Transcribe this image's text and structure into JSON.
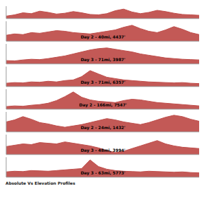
{
  "chart_data": [
    {
      "type": "area",
      "color": "#c0504d",
      "ylim": [
        0,
        3000
      ],
      "tick_labels": false,
      "values": [
        600,
        900,
        1400,
        1200,
        1800,
        1500,
        1100,
        1300,
        1700,
        1400,
        1000,
        900,
        1200,
        1900,
        2300,
        1600,
        1200,
        1500,
        2000,
        1700,
        1300,
        1000,
        900,
        800
      ]
    },
    {
      "type": "area",
      "title": "Day 2 - 40mi, 4437'",
      "color": "#c0504d",
      "ylim": [
        0,
        3000
      ],
      "tick_labels": false,
      "values": [
        900,
        1100,
        1000,
        1300,
        1200,
        1400,
        1600,
        1500,
        1300,
        1200,
        1100,
        1300,
        1500,
        1700,
        2100,
        2400,
        1900,
        1500,
        1300,
        1700,
        2200,
        1800,
        1300,
        1000
      ]
    },
    {
      "type": "area",
      "title": "Day 3 - 71mi, 3987'",
      "color": "#c0504d",
      "ylim": [
        0,
        3000
      ],
      "tick_labels": false,
      "values": [
        500,
        450,
        600,
        700,
        650,
        800,
        1000,
        1200,
        1500,
        1800,
        2100,
        2300,
        2400,
        2200,
        2000,
        1800,
        1500,
        1300,
        1100,
        900,
        800,
        700,
        650,
        600
      ]
    },
    {
      "type": "area",
      "title": "Day 3 - 71mi, 6357'",
      "color": "#c0504d",
      "ylim": [
        0,
        3000
      ],
      "tick_labels": false,
      "values": [
        500,
        600,
        550,
        700,
        650,
        800,
        700,
        900,
        1000,
        1500,
        2400,
        1900,
        1400,
        1200,
        1000,
        900,
        800,
        700,
        650,
        600,
        550,
        600,
        500,
        450
      ]
    },
    {
      "type": "area",
      "title": "Day 2 - 166mi, 7547'",
      "color": "#c0504d",
      "ylim": [
        0,
        3000
      ],
      "tick_labels": false,
      "values": [
        400,
        500,
        450,
        600,
        700,
        900,
        1300,
        1900,
        2600,
        1800,
        1400,
        1200,
        1100,
        1000,
        1300,
        1500,
        1400,
        1200,
        1000,
        900,
        800,
        700,
        600,
        500
      ]
    },
    {
      "type": "area",
      "title": "Day 2 - 24mi, 1432'",
      "color": "#c0504d",
      "ylim": [
        0,
        3000
      ],
      "tick_labels": false,
      "values": [
        1500,
        1800,
        2300,
        1900,
        1400,
        1200,
        900,
        700,
        900,
        1100,
        1400,
        1700,
        2000,
        1800,
        1500,
        1300,
        1100,
        1400,
        1800,
        2200,
        2500,
        2300,
        1900,
        1600
      ]
    },
    {
      "type": "area",
      "title": "Day 3 - 48mi, 3994'",
      "color": "#c0504d",
      "ylim": [
        0,
        3000
      ],
      "tick_labels": false,
      "values": [
        1200,
        1400,
        1600,
        1500,
        1800,
        1700,
        1600,
        1900,
        1700,
        1500,
        1300,
        1000,
        600,
        300,
        500,
        900,
        1300,
        1700,
        2100,
        1600,
        1300,
        1100,
        1000,
        900
      ]
    },
    {
      "type": "area",
      "title": "Day 3 - 63mi, 5773'",
      "color": "#c0504d",
      "ylim": [
        0,
        3000
      ],
      "tick_labels": false,
      "values": [
        800,
        900,
        850,
        1000,
        950,
        900,
        1000,
        1100,
        1200,
        1300,
        2600,
        1600,
        1200,
        1000,
        900,
        850,
        800,
        900,
        850,
        800,
        750,
        800,
        700,
        650
      ]
    }
  ],
  "footer": "Absolute Vs Elevation Profiles"
}
